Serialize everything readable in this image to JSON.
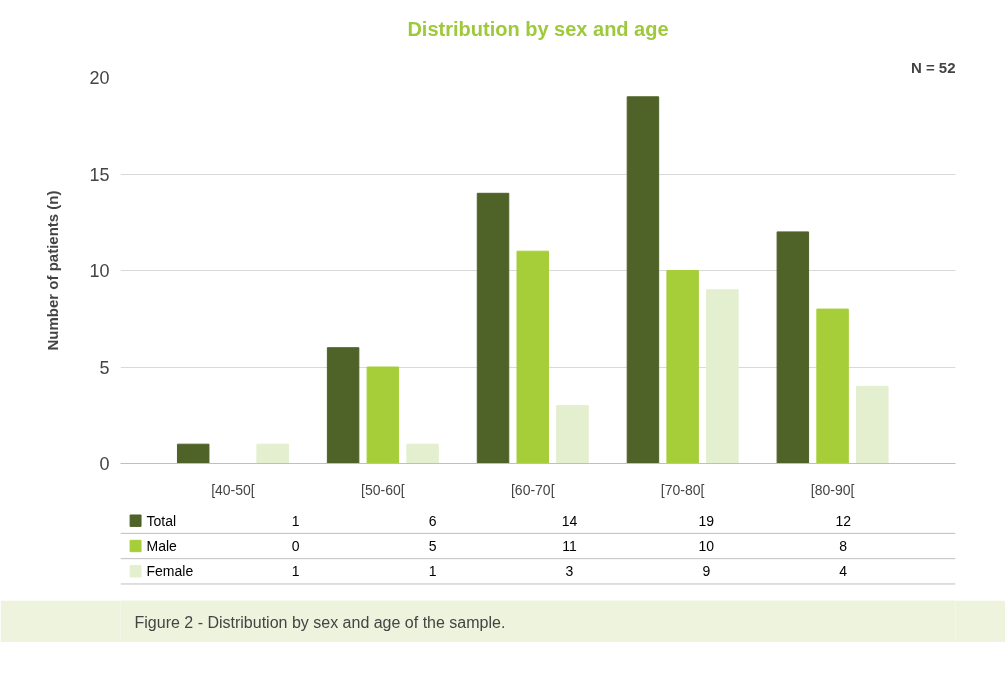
{
  "chart_data": {
    "type": "bar",
    "title": "Distribution by sex and age",
    "ylabel": "Number of patients (n)",
    "categories": [
      "[40-50[",
      "[50-60[",
      "[60-70[",
      "[70-80[",
      "[80-90["
    ],
    "series": [
      {
        "name": "Total",
        "color": "#4f6228",
        "values": [
          1,
          6,
          14,
          19,
          12
        ]
      },
      {
        "name": "Male",
        "color": "#a6ce39",
        "values": [
          0,
          5,
          11,
          10,
          8
        ]
      },
      {
        "name": "Female",
        "color": "#e3efcf",
        "values": [
          1,
          1,
          3,
          9,
          4
        ]
      }
    ],
    "ylim": [
      0,
      20
    ],
    "yticks": [
      0,
      5,
      10,
      15,
      20
    ],
    "grid": "y",
    "legend": "bottom",
    "data_labels": true,
    "annotations": [
      "N = 52",
      "Figure 2 - Distribution by sex and age of the sample."
    ]
  }
}
